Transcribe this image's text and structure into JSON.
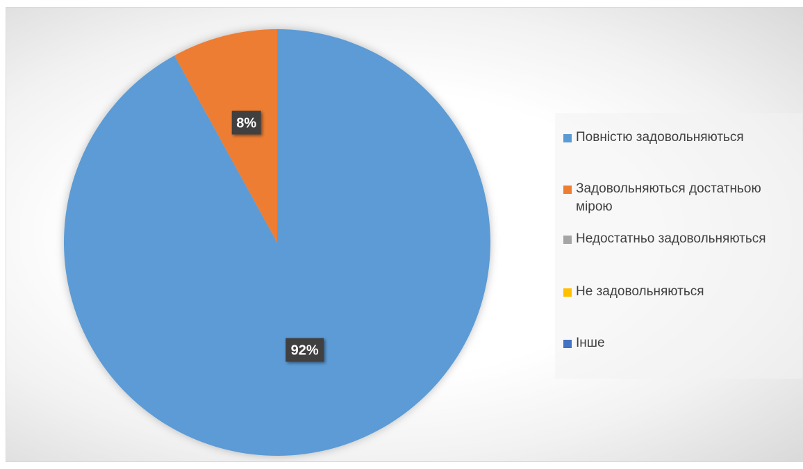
{
  "chart_data": {
    "type": "pie",
    "title": "",
    "categories": [
      "Повністю задовольняються",
      "Задовольняються достатньою мірою",
      "Недостатньо задовольняються",
      "Не задовольняються",
      "Інше"
    ],
    "values": [
      92,
      8,
      0,
      0,
      0
    ],
    "data_labels": [
      "92%",
      "8%",
      "",
      "",
      ""
    ],
    "colors": [
      "#5b9bd5",
      "#ed7d31",
      "#a5a5a5",
      "#ffc000",
      "#4472c4"
    ],
    "legend_position": "right"
  }
}
